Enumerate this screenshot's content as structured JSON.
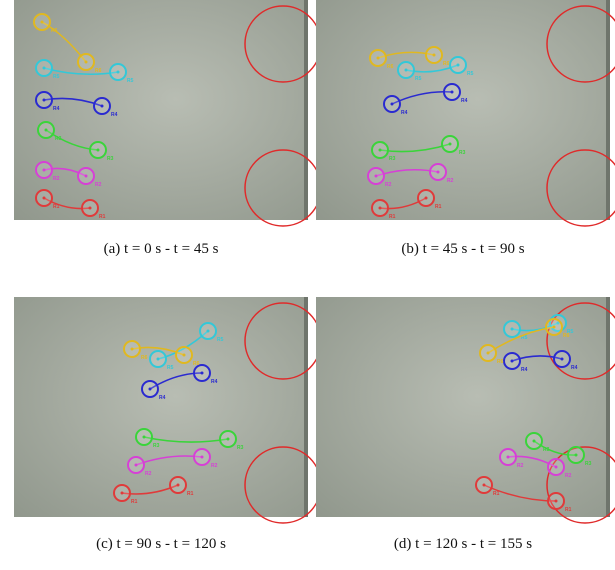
{
  "figure": {
    "robots": [
      {
        "label": "R1",
        "color": "#e03a3a"
      },
      {
        "label": "R2",
        "color": "#d640d6"
      },
      {
        "label": "R3",
        "color": "#3ad43a"
      },
      {
        "label": "R4",
        "color": "#2a2ad0"
      },
      {
        "label": "R5",
        "color": "#33c8d8"
      },
      {
        "label": "R6",
        "color": "#e0b820"
      }
    ],
    "panels": [
      {
        "caption": "(a)  t = 0 s - t = 45 s"
      },
      {
        "caption": "(b)  t = 45 s - t = 90 s"
      },
      {
        "caption": "(c)  t = 90 s - t = 120 s"
      },
      {
        "caption": "(d)  t = 120 s - t = 155 s"
      }
    ]
  }
}
